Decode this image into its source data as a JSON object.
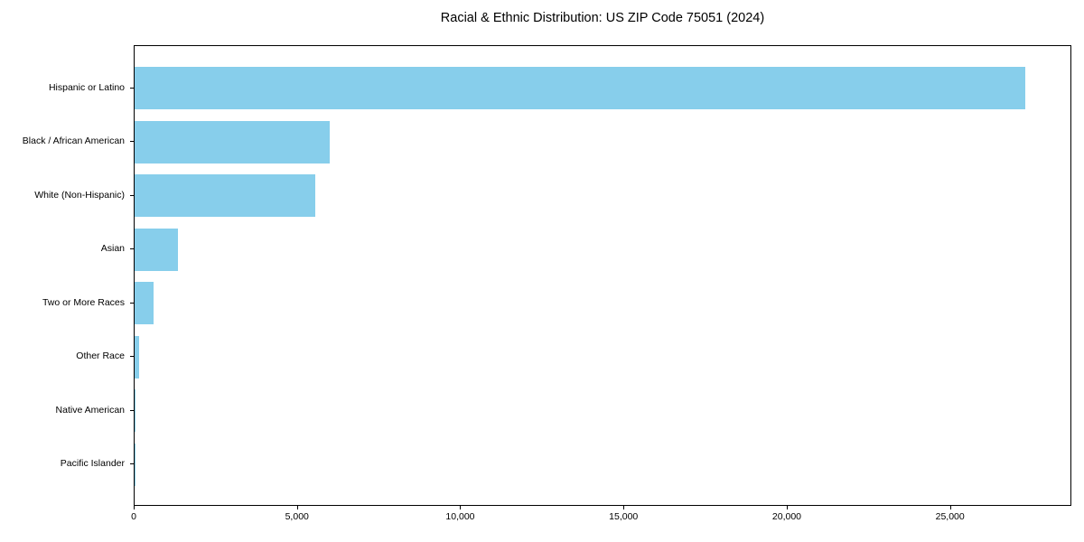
{
  "chart_data": {
    "type": "bar",
    "orientation": "horizontal",
    "title": "Racial & Ethnic Distribution: US ZIP Code 75051 (2024)",
    "categories": [
      "Hispanic or Latino",
      "Black / African American",
      "White (Non-Hispanic)",
      "Asian",
      "Two or More Races",
      "Other Race",
      "Native American",
      "Pacific Islander"
    ],
    "values": [
      27290,
      5980,
      5540,
      1340,
      570,
      140,
      30,
      10
    ],
    "bar_color": "#87CEEB",
    "xlabel": "",
    "ylabel": "",
    "xlim": [
      0,
      28660
    ],
    "x_ticks": [
      0,
      5000,
      10000,
      15000,
      20000,
      25000
    ],
    "x_tick_labels": [
      "0",
      "5,000",
      "10,000",
      "15,000",
      "20,000",
      "25,000"
    ],
    "grid": false,
    "legend_position": "none"
  }
}
